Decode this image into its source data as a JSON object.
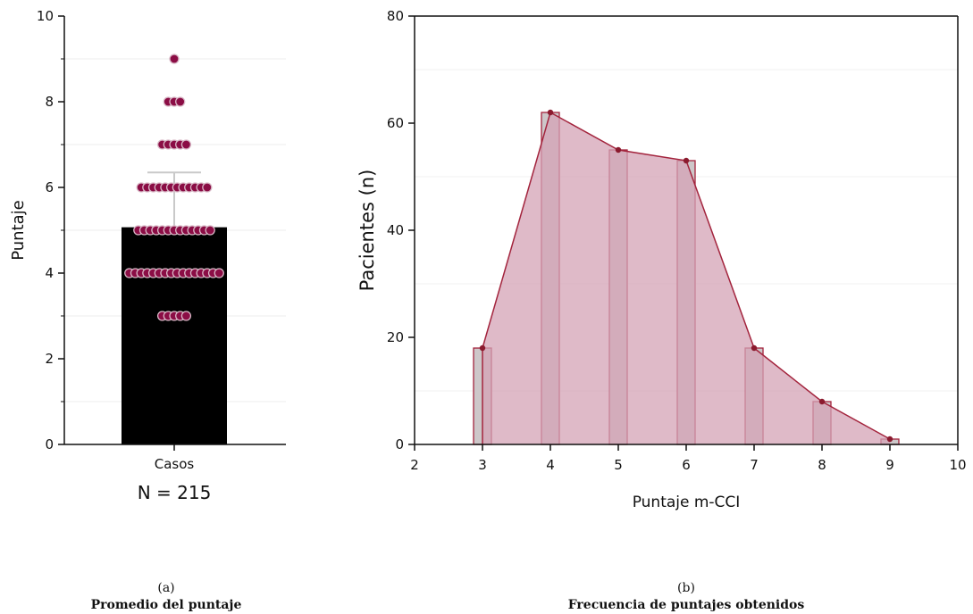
{
  "chart_data": [
    {
      "type": "bar",
      "ylabel": "Puntaje",
      "ylim": [
        0,
        10
      ],
      "yticks": [
        0,
        2,
        4,
        6,
        8,
        10
      ],
      "categories": [
        "Casos"
      ],
      "values": [
        5.07
      ],
      "error_upper": 6.35,
      "subtitle_n": "N = 215",
      "bar_color": "#000000",
      "point_color": "#8b0d45",
      "points": [
        {
          "y": 3,
          "count": 5
        },
        {
          "y": 4,
          "count": 16
        },
        {
          "y": 5,
          "count": 13
        },
        {
          "y": 6,
          "count": 12
        },
        {
          "y": 7,
          "count": 5
        },
        {
          "y": 8,
          "count": 3
        },
        {
          "y": 9,
          "count": 1
        }
      ],
      "caption_letter": "(a)",
      "caption_title": "Promedio del puntaje"
    },
    {
      "type": "area",
      "xlabel": "Puntaje m-CCI",
      "ylabel": "Pacientes (n)",
      "xlim": [
        2,
        10
      ],
      "ylim": [
        0,
        80
      ],
      "xticks": [
        2,
        3,
        4,
        5,
        6,
        7,
        8,
        9,
        10
      ],
      "yticks": [
        0,
        20,
        40,
        60,
        80
      ],
      "x": [
        3,
        4,
        5,
        6,
        7,
        8,
        9
      ],
      "values": [
        18,
        62,
        55,
        53,
        18,
        8,
        1
      ],
      "fill_color": "#d4a3b6",
      "line_color": "#a3243d",
      "bar_color": "#cdc7c9",
      "caption_letter": "(b)",
      "caption_title": "Frecuencia de puntajes obtenidos"
    }
  ]
}
